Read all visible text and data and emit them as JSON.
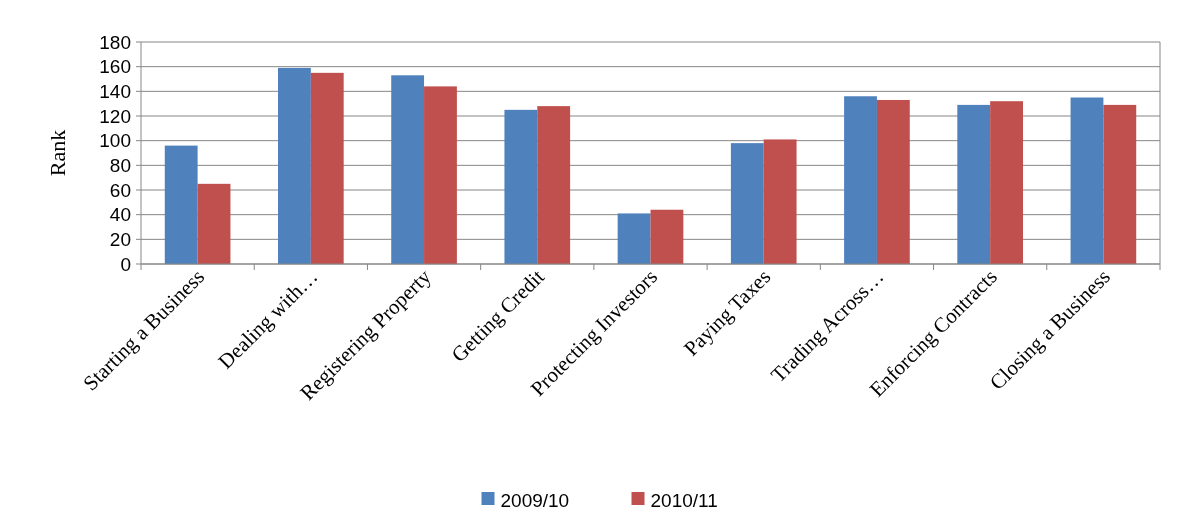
{
  "chart_data": {
    "type": "bar",
    "ylabel": "Rank",
    "categories": [
      "Starting a Business",
      "Dealing with…",
      "Registering Property",
      "Getting Credit",
      "Protecting Investors",
      "Paying Taxes",
      "Trading Across…",
      "Enforcing Contracts",
      "Closing a Business"
    ],
    "series": [
      {
        "name": "2009/10",
        "color": "#4f81bd",
        "values": [
          96,
          159,
          153,
          125,
          41,
          98,
          136,
          129,
          135
        ]
      },
      {
        "name": "2010/11",
        "color": "#c0504d",
        "values": [
          65,
          155,
          144,
          128,
          44,
          101,
          133,
          132,
          129
        ]
      }
    ],
    "ylim": [
      0,
      180
    ],
    "yticks": [
      0,
      20,
      40,
      60,
      80,
      100,
      120,
      140,
      160,
      180
    ],
    "grid": "y",
    "legend": "bottom"
  }
}
